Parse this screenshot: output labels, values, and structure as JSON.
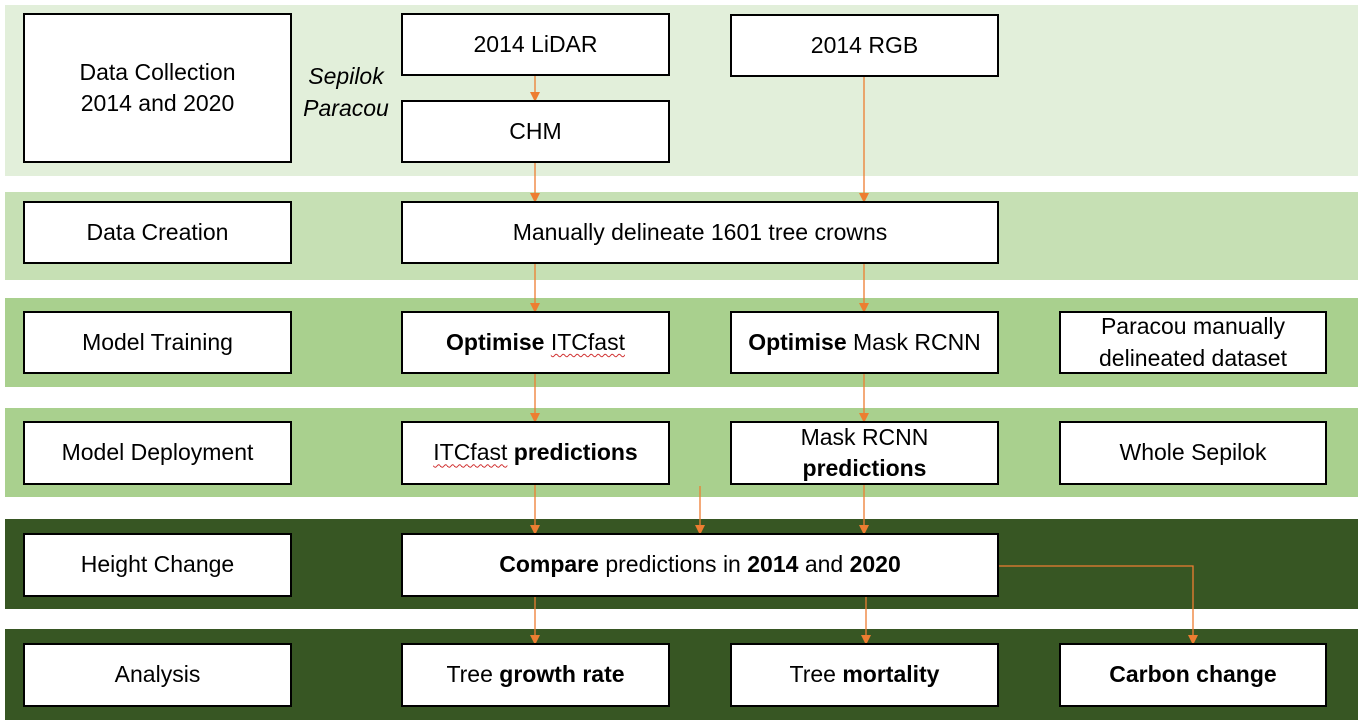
{
  "colors": {
    "band1": "#e2efda",
    "band2": "#c6e0b4",
    "band3": "#a9d08e",
    "band4": "#a9d08e",
    "band5": "#375623",
    "band6": "#375623",
    "arrow": "#ed7d31"
  },
  "stages": {
    "collection": "Data Collection 2014 and 2020",
    "creation": "Data Creation",
    "training": "Model Training",
    "deployment": "Model Deployment",
    "height": "Height Change",
    "analysis": "Analysis"
  },
  "sites": {
    "sepilok": "Sepilok",
    "paracou": "Paracou"
  },
  "nodes": {
    "lidar": "2014 LiDAR",
    "rgb": "2014 RGB",
    "chm": "CHM",
    "delineate": "Manually delineate 1601 tree crowns",
    "opt_itc": {
      "bold": "Optimise",
      "rest": "ITCfast"
    },
    "opt_mask": {
      "bold": "Optimise",
      "rest": "Mask RCNN"
    },
    "paracou_dataset": "Paracou manually delineated dataset",
    "itc_pred": {
      "rest": "ITCfast",
      "bold": "predictions"
    },
    "mask_pred": {
      "rest": "Mask RCNN",
      "bold": "predictions"
    },
    "whole": "Whole Sepilok",
    "compare": {
      "b1": "Compare",
      "t1": "predictions in",
      "b2": "2014",
      "t2": "and",
      "b3": "2020"
    },
    "growth": {
      "rest": "Tree",
      "bold": "growth rate"
    },
    "mortality": {
      "rest": "Tree",
      "bold": "mortality"
    },
    "carbon": "Carbon change"
  }
}
